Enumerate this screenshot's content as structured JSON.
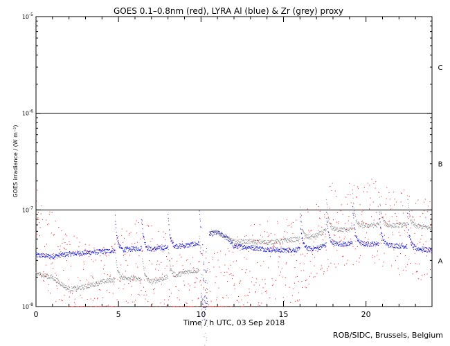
{
  "chart_data": {
    "type": "scatter",
    "title": "GOES 0.1–0.8nm (red), LYRA Al (blue) & Zr (grey) proxy",
    "xlabel": "Time / h UTC, 03 Sep 2018",
    "ylabel": "GOES irradiance / (W m⁻²)",
    "xlim": [
      0,
      24
    ],
    "ylim_log10": [
      -8,
      -5
    ],
    "x_ticks": [
      0,
      5,
      10,
      15,
      20
    ],
    "x_tick_labels": [
      "0",
      "5",
      "10",
      "15",
      "20"
    ],
    "y_ticks": [
      {
        "base": "10",
        "exp": "-8"
      },
      {
        "base": "10",
        "exp": "-7"
      },
      {
        "base": "10",
        "exp": "-6"
      },
      {
        "base": "10",
        "exp": "-5"
      }
    ],
    "flare_levels": [
      1e-07,
      1e-06
    ],
    "flare_class_labels": [
      {
        "label": "A",
        "value": 3e-08
      },
      {
        "label": "B",
        "value": 3e-07
      },
      {
        "label": "C",
        "value": 3e-06
      }
    ],
    "series": [
      {
        "name": "LYRA Al proxy",
        "color": "#0000cc",
        "x": [
          0,
          1,
          2,
          3,
          4,
          4.8,
          5.5,
          6.4,
          7,
          7.9,
          8.5,
          9.2,
          9.9,
          10.5,
          11,
          11.5,
          12,
          13,
          14,
          15,
          16,
          17,
          17.5,
          18,
          19,
          19.2,
          20,
          20.8,
          21.5,
          22.5,
          23,
          24
        ],
        "y": [
          3.4e-08,
          3.3e-08,
          3.5e-08,
          3.6e-08,
          3.7e-08,
          3.8e-08,
          3.9e-08,
          4e-08,
          3.9e-08,
          4.1e-08,
          4.2e-08,
          4.3e-08,
          4.5e-08,
          5.6e-08,
          5.8e-08,
          5.3e-08,
          4.2e-08,
          4.1e-08,
          3.9e-08,
          3.8e-08,
          3.9e-08,
          4e-08,
          4.3e-08,
          4.5e-08,
          4.4e-08,
          4.7e-08,
          4.4e-08,
          4.5e-08,
          4.3e-08,
          4.2e-08,
          4e-08,
          3.8e-08
        ],
        "spike_times": [
          4.8,
          6.4,
          8.0,
          9.9,
          16.0,
          17.6,
          19.2,
          20.8,
          22.5
        ]
      },
      {
        "name": "LYRA Zr proxy",
        "color": "#888888",
        "x": [
          0,
          1,
          2,
          3,
          4,
          4.8,
          5.5,
          6.4,
          7,
          7.9,
          8.5,
          9.2,
          9.9,
          10.5,
          11,
          11.5,
          12,
          13,
          14,
          15,
          16,
          17,
          17.5,
          18,
          19,
          19.2,
          20,
          20.8,
          21.5,
          22.5,
          23,
          24
        ],
        "y": [
          2.2e-08,
          2e-08,
          1.5e-08,
          1.6e-08,
          1.8e-08,
          1.9e-08,
          2e-08,
          1.9e-08,
          1.8e-08,
          2e-08,
          2.1e-08,
          2.3e-08,
          2.4e-08,
          5.7e-08,
          5.9e-08,
          5.2e-08,
          4.7e-08,
          4.7e-08,
          4.6e-08,
          4.8e-08,
          5e-08,
          5.4e-08,
          6e-08,
          6.3e-08,
          6.2e-08,
          6.7e-08,
          6.9e-08,
          7e-08,
          6.9e-08,
          7e-08,
          6.8e-08,
          6.5e-08
        ],
        "spike_times": [
          4.8,
          6.4,
          8.0,
          9.9,
          16.0,
          17.6,
          19.2,
          20.8,
          22.5
        ]
      },
      {
        "name": "GOES 0.1–0.8nm",
        "color": "#ff0000",
        "x": [
          0,
          2,
          4,
          6,
          8,
          9.5,
          10.5,
          12,
          14,
          16,
          18,
          20,
          22,
          24
        ],
        "y": [
          6e-08,
          2e-08,
          1.5e-08,
          3e-08,
          2e-08,
          1.5e-08,
          1.2e-08,
          2e-08,
          3e-08,
          3e-08,
          7e-08,
          8e-08,
          6e-08,
          5e-08
        ]
      }
    ]
  },
  "credit": "ROB/SIDC, Brussels, Belgium"
}
